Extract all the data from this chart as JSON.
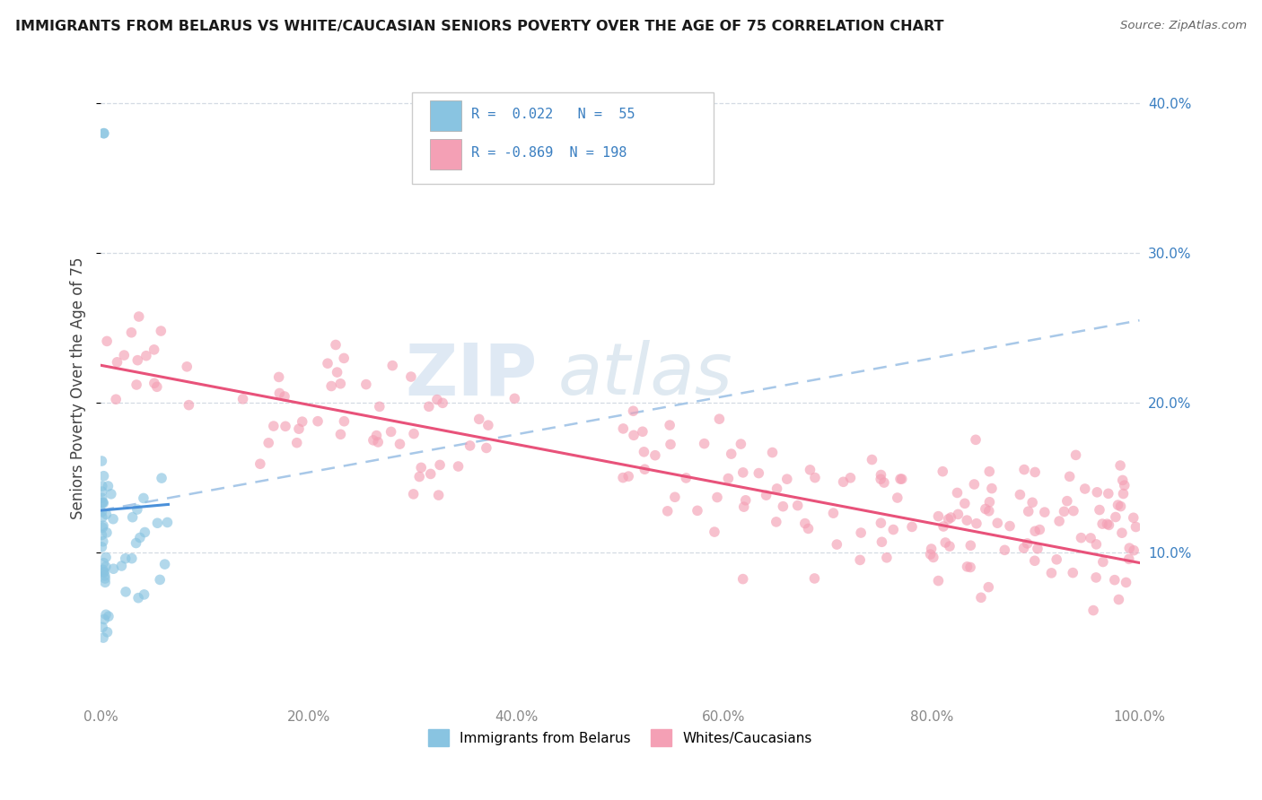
{
  "title": "IMMIGRANTS FROM BELARUS VS WHITE/CAUCASIAN SENIORS POVERTY OVER THE AGE OF 75 CORRELATION CHART",
  "source_text": "Source: ZipAtlas.com",
  "ylabel": "Seniors Poverty Over the Age of 75",
  "watermark_zip": "ZIP",
  "watermark_atlas": "atlas",
  "blue_color": "#89c4e1",
  "pink_color": "#f4a0b5",
  "blue_line_color": "#4a90d9",
  "pink_line_color": "#e8527a",
  "dashed_line_color": "#a8c8e8",
  "legend_text_color": "#3a7fc1",
  "ytick_color": "#3a7fc1",
  "tick_color": "#888888",
  "grid_color": "#d0d8e0",
  "xlim": [
    0.0,
    1.0
  ],
  "ylim": [
    0.0,
    0.42
  ],
  "xticks": [
    0.0,
    0.2,
    0.4,
    0.6,
    0.8,
    1.0
  ],
  "xticklabels": [
    "0.0%",
    "20.0%",
    "40.0%",
    "60.0%",
    "80.0%",
    "100.0%"
  ],
  "yticks": [
    0.1,
    0.2,
    0.3,
    0.4
  ],
  "yticklabels": [
    "10.0%",
    "20.0%",
    "30.0%",
    "40.0%"
  ],
  "blue_trend_x0": 0.0,
  "blue_trend_x1": 0.065,
  "blue_trend_y0": 0.128,
  "blue_trend_y1": 0.132,
  "dash_trend_x0": 0.0,
  "dash_trend_x1": 1.0,
  "dash_trend_y0": 0.128,
  "dash_trend_y1": 0.255,
  "pink_trend_x0": 0.0,
  "pink_trend_x1": 1.0,
  "pink_trend_y0": 0.225,
  "pink_trend_y1": 0.093
}
